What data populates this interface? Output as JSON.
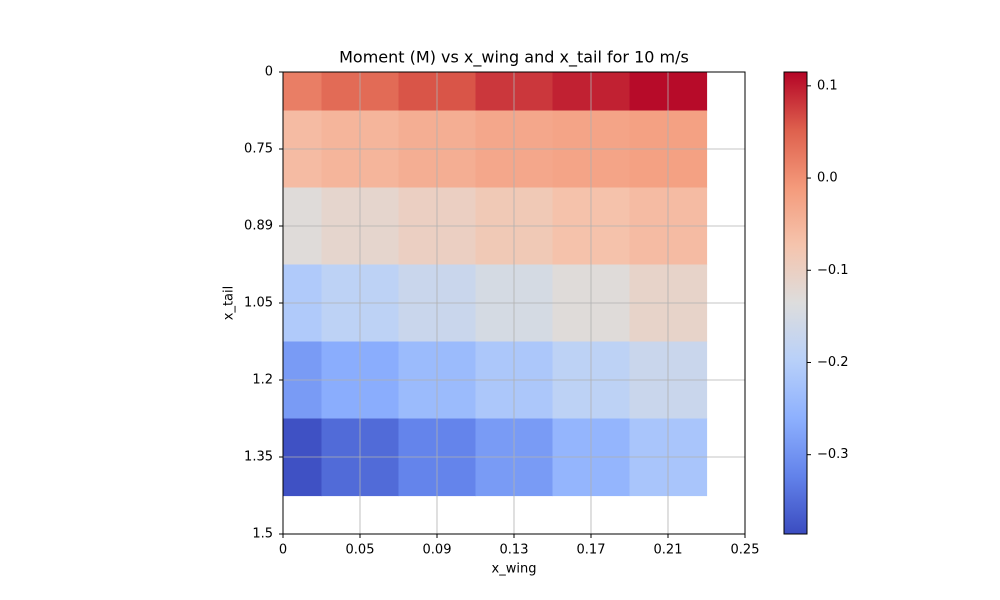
{
  "chart_data": {
    "type": "heatmap",
    "title": "Moment (M) vs x_wing and x_tail for 10 m/s",
    "x_label": "x_wing",
    "y_label": "x_tail",
    "x_categories": [
      "0",
      "0.05",
      "0.09",
      "0.13",
      "0.17",
      "0.21",
      "0.25"
    ],
    "y_categories": [
      "0",
      "0.75",
      "0.89",
      "1.05",
      "1.2",
      "1.35",
      "1.5"
    ],
    "z": [
      [
        0.02,
        0.04,
        0.06,
        0.08,
        0.095,
        0.11
      ],
      [
        -0.06,
        -0.05,
        -0.04,
        -0.03,
        -0.025,
        -0.02
      ],
      [
        -0.13,
        -0.115,
        -0.1,
        -0.085,
        -0.07,
        -0.06
      ],
      [
        -0.21,
        -0.19,
        -0.17,
        -0.15,
        -0.13,
        -0.11
      ],
      [
        -0.29,
        -0.265,
        -0.24,
        -0.215,
        -0.19,
        -0.17
      ],
      [
        -0.38,
        -0.35,
        -0.32,
        -0.29,
        -0.25,
        -0.22
      ]
    ],
    "colormap": "coolwarm",
    "clim": [
      -0.386,
      0.115
    ],
    "cticks": [
      {
        "value": -0.3,
        "label": "−0.3"
      },
      {
        "value": -0.2,
        "label": "−0.2"
      },
      {
        "value": -0.1,
        "label": "−0.1"
      },
      {
        "value": 0,
        "label": "0.0"
      },
      0.1
    ],
    "grid": true
  }
}
